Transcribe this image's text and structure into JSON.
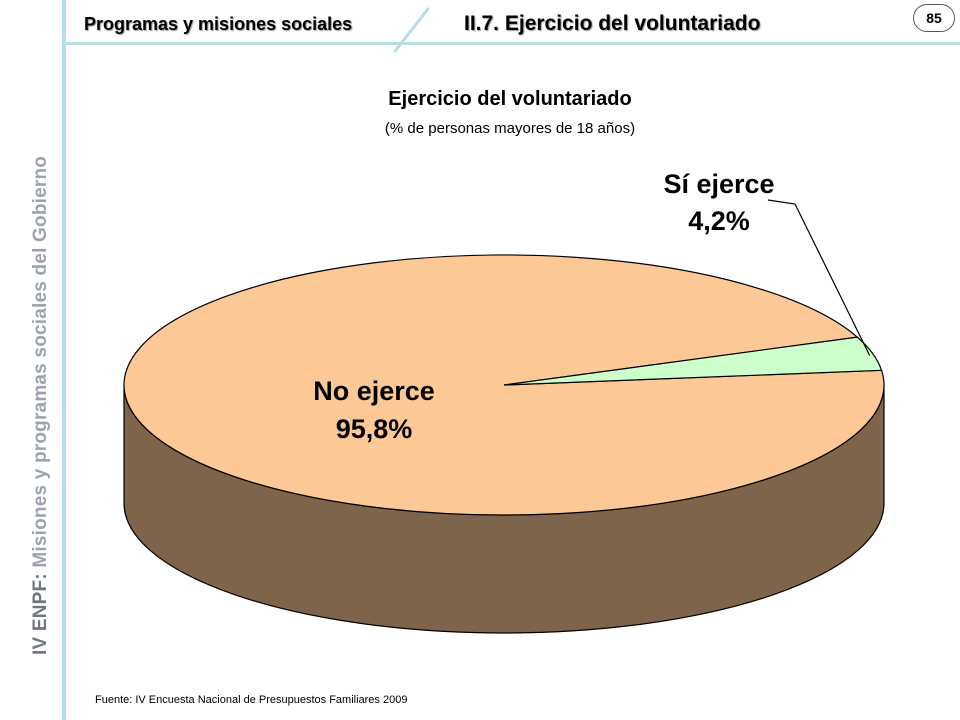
{
  "header": {
    "section": "Programas y misiones sociales",
    "title": "II.7. Ejercicio del voluntariado",
    "page_number": "85"
  },
  "sidebar": {
    "prefix": "IV ENPF:",
    "text": "Misiones y programas sociales del Gobierno"
  },
  "chart_data": {
    "type": "pie",
    "title": "Ejercicio del voluntariado",
    "subtitle": "(% de personas mayores de 18 años)",
    "slices": [
      {
        "label": "No ejerce",
        "value": 95.8,
        "value_label": "95,8%",
        "color": "#fcc896"
      },
      {
        "label": "Sí ejerce",
        "value": 4.2,
        "value_label": "4,2%",
        "color": "#ccffcc"
      }
    ],
    "side_color": "#7d644a",
    "three_d": true
  },
  "footer": {
    "source": "Fuente: IV Encuesta Nacional de Presupuestos Familiares 2009"
  }
}
